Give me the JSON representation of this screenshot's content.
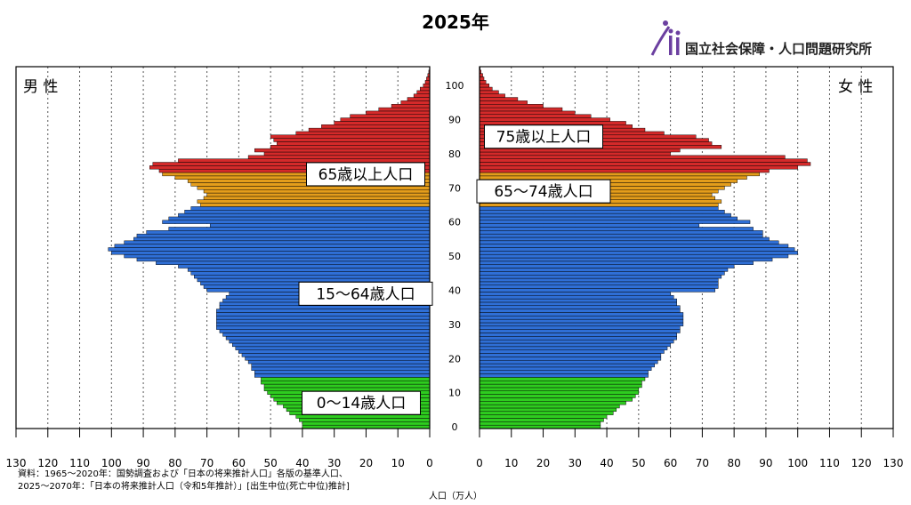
{
  "chart_data": {
    "type": "bar",
    "title": "2025年",
    "xlabel": "人口（万人）",
    "male_label": "男 性",
    "female_label": "女 性",
    "ages": [
      0,
      1,
      2,
      3,
      4,
      5,
      6,
      7,
      8,
      9,
      10,
      11,
      12,
      13,
      14,
      15,
      16,
      17,
      18,
      19,
      20,
      21,
      22,
      23,
      24,
      25,
      26,
      27,
      28,
      29,
      30,
      31,
      32,
      33,
      34,
      35,
      36,
      37,
      38,
      39,
      40,
      41,
      42,
      43,
      44,
      45,
      46,
      47,
      48,
      49,
      50,
      51,
      52,
      53,
      54,
      55,
      56,
      57,
      58,
      59,
      60,
      61,
      62,
      63,
      64,
      65,
      66,
      67,
      68,
      69,
      70,
      71,
      72,
      73,
      74,
      75,
      76,
      77,
      78,
      79,
      80,
      81,
      82,
      83,
      84,
      85,
      86,
      87,
      88,
      89,
      90,
      91,
      92,
      93,
      94,
      95,
      96,
      97,
      98,
      99,
      100,
      101,
      102,
      103,
      104,
      105
    ],
    "male": [
      40,
      40,
      41,
      42,
      44,
      45,
      46,
      48,
      49,
      50,
      51,
      52,
      52,
      53,
      53,
      55,
      55,
      56,
      56,
      57,
      58,
      59,
      60,
      61,
      62,
      63,
      64,
      65,
      66,
      67,
      67,
      67,
      67,
      67,
      67,
      66,
      66,
      65,
      64,
      63,
      70,
      71,
      72,
      73,
      74,
      75,
      76,
      79,
      86,
      92,
      96,
      100,
      101,
      99,
      96,
      93,
      92,
      89,
      82,
      69,
      84,
      82,
      79,
      77,
      75,
      72,
      73,
      71,
      70,
      71,
      73,
      75,
      76,
      80,
      84,
      85,
      88,
      87,
      79,
      57,
      52,
      55,
      50,
      48,
      49,
      50,
      42,
      38,
      34,
      30,
      28,
      25,
      20,
      16,
      12,
      9,
      7,
      5,
      4,
      3,
      2,
      1.4,
      1,
      0.6,
      0.3,
      0.1
    ],
    "female": [
      38,
      38,
      39,
      40,
      42,
      43,
      44,
      46,
      48,
      49,
      50,
      50,
      51,
      51,
      52,
      53,
      53,
      54,
      55,
      56,
      57,
      57,
      58,
      59,
      60,
      61,
      62,
      62,
      63,
      63,
      64,
      64,
      64,
      64,
      63,
      63,
      62,
      62,
      61,
      60,
      74,
      75,
      75,
      75,
      76,
      77,
      78,
      80,
      86,
      92,
      97,
      100,
      99,
      97,
      94,
      91,
      89,
      89,
      86,
      69,
      85,
      81,
      79,
      77,
      75,
      75,
      76,
      74,
      73,
      75,
      77,
      79,
      81,
      84,
      88,
      91,
      100,
      104,
      103,
      96,
      60,
      63,
      76,
      73,
      72,
      68,
      58,
      52,
      48,
      46,
      41,
      35,
      30,
      26,
      20,
      15,
      12,
      8,
      6,
      4,
      3,
      2,
      1.4,
      1,
      0.5,
      0.2
    ],
    "groups": [
      {
        "label": "0～14歳人口",
        "side": "male",
        "from": 0,
        "to": 14,
        "color": "#2ecc1f"
      },
      {
        "label": "15～64歳人口",
        "side": "male",
        "from": 15,
        "to": 64,
        "color": "#2f6fd6"
      },
      {
        "label": "65歳以上人口",
        "side": "male",
        "from": 65,
        "to": 105,
        "color": "#d42a2a"
      },
      {
        "label": "65～74歳人口",
        "side": "female",
        "from": 65,
        "to": 74,
        "color": "#e49d1b"
      },
      {
        "label": "75歳以上人口",
        "side": "female",
        "from": 75,
        "to": 105,
        "color": "#d42a2a"
      }
    ],
    "xticks": [
      0,
      10,
      20,
      30,
      40,
      50,
      60,
      70,
      80,
      90,
      100,
      110,
      120,
      130
    ],
    "age_ticks": [
      0,
      10,
      20,
      30,
      40,
      50,
      60,
      70,
      80,
      90,
      100
    ],
    "xlim": [
      0,
      130
    ],
    "ylim": [
      0,
      105
    ]
  },
  "colors": {
    "male_65_74": "#e49d1b",
    "male_75_plus": "#d42a2a",
    "children": "#2ecc1f",
    "working": "#2f6fd6",
    "elderly": "#d42a2a"
  },
  "organization": "国立社会保障・人口問題研究所",
  "source_lines": [
    "資料：1965～2020年：国勢調査および「日本の将来推計人口」各版の基準人口、",
    "2025～2070年：「日本の将来推計人口（令和5年推計）」[出生中位(死亡中位)推計]"
  ]
}
